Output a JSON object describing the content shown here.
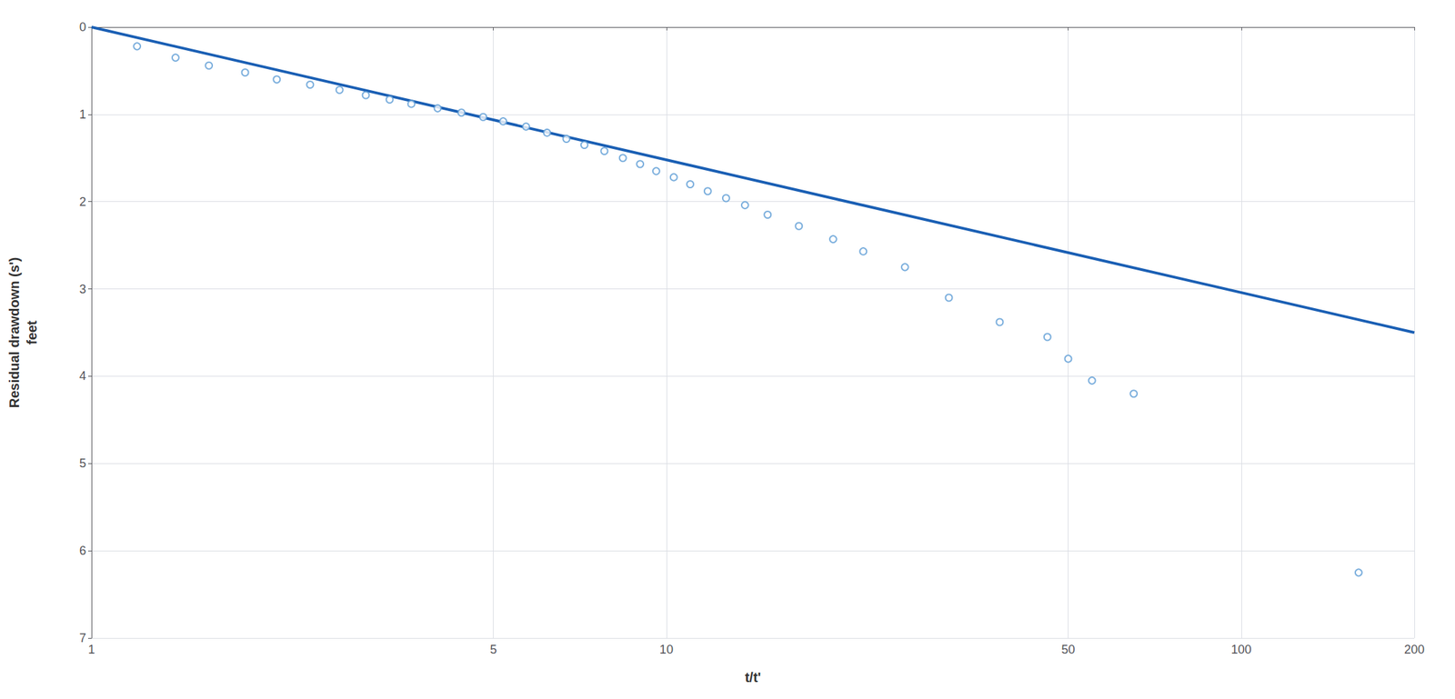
{
  "chart_data": {
    "type": "scatter",
    "title": "",
    "xlabel": "t/t'",
    "ylabel": "Residual drawdown (s')\nfeet",
    "log": "x",
    "grid": true,
    "xlim": [
      1,
      200
    ],
    "ylim": [
      7,
      0
    ],
    "xticks": [
      1,
      5,
      10,
      50,
      100,
      200
    ],
    "yticks": [
      0,
      1,
      2,
      3,
      4,
      5,
      6,
      7
    ],
    "series": [
      {
        "type": "line",
        "color": "#1a5fb4",
        "line_style": "solid",
        "x": [
          1,
          200
        ],
        "values": [
          0.0,
          3.5
        ]
      },
      {
        "type": "scatter",
        "color": "#5b9bd5",
        "marker": "circle",
        "x": [
          1.2,
          1.4,
          1.6,
          1.85,
          2.1,
          2.4,
          2.7,
          3.0,
          3.3,
          3.6,
          4.0,
          4.4,
          4.8,
          5.2,
          5.7,
          6.2,
          6.7,
          7.2,
          7.8,
          8.4,
          9.0,
          9.6,
          10.3,
          11.0,
          11.8,
          12.7,
          13.7,
          15.0,
          17.0,
          19.5,
          22.0,
          26.0,
          31.0,
          38.0,
          46.0,
          50.0,
          55.0,
          65.0,
          160.0
        ],
        "values": [
          0.22,
          0.35,
          0.44,
          0.52,
          0.6,
          0.66,
          0.72,
          0.78,
          0.83,
          0.88,
          0.93,
          0.98,
          1.03,
          1.08,
          1.14,
          1.21,
          1.28,
          1.35,
          1.42,
          1.5,
          1.57,
          1.65,
          1.72,
          1.8,
          1.88,
          1.96,
          2.04,
          2.15,
          2.28,
          2.43,
          2.57,
          2.75,
          3.1,
          3.38,
          3.55,
          3.8,
          4.05,
          4.2,
          6.25
        ]
      }
    ]
  }
}
